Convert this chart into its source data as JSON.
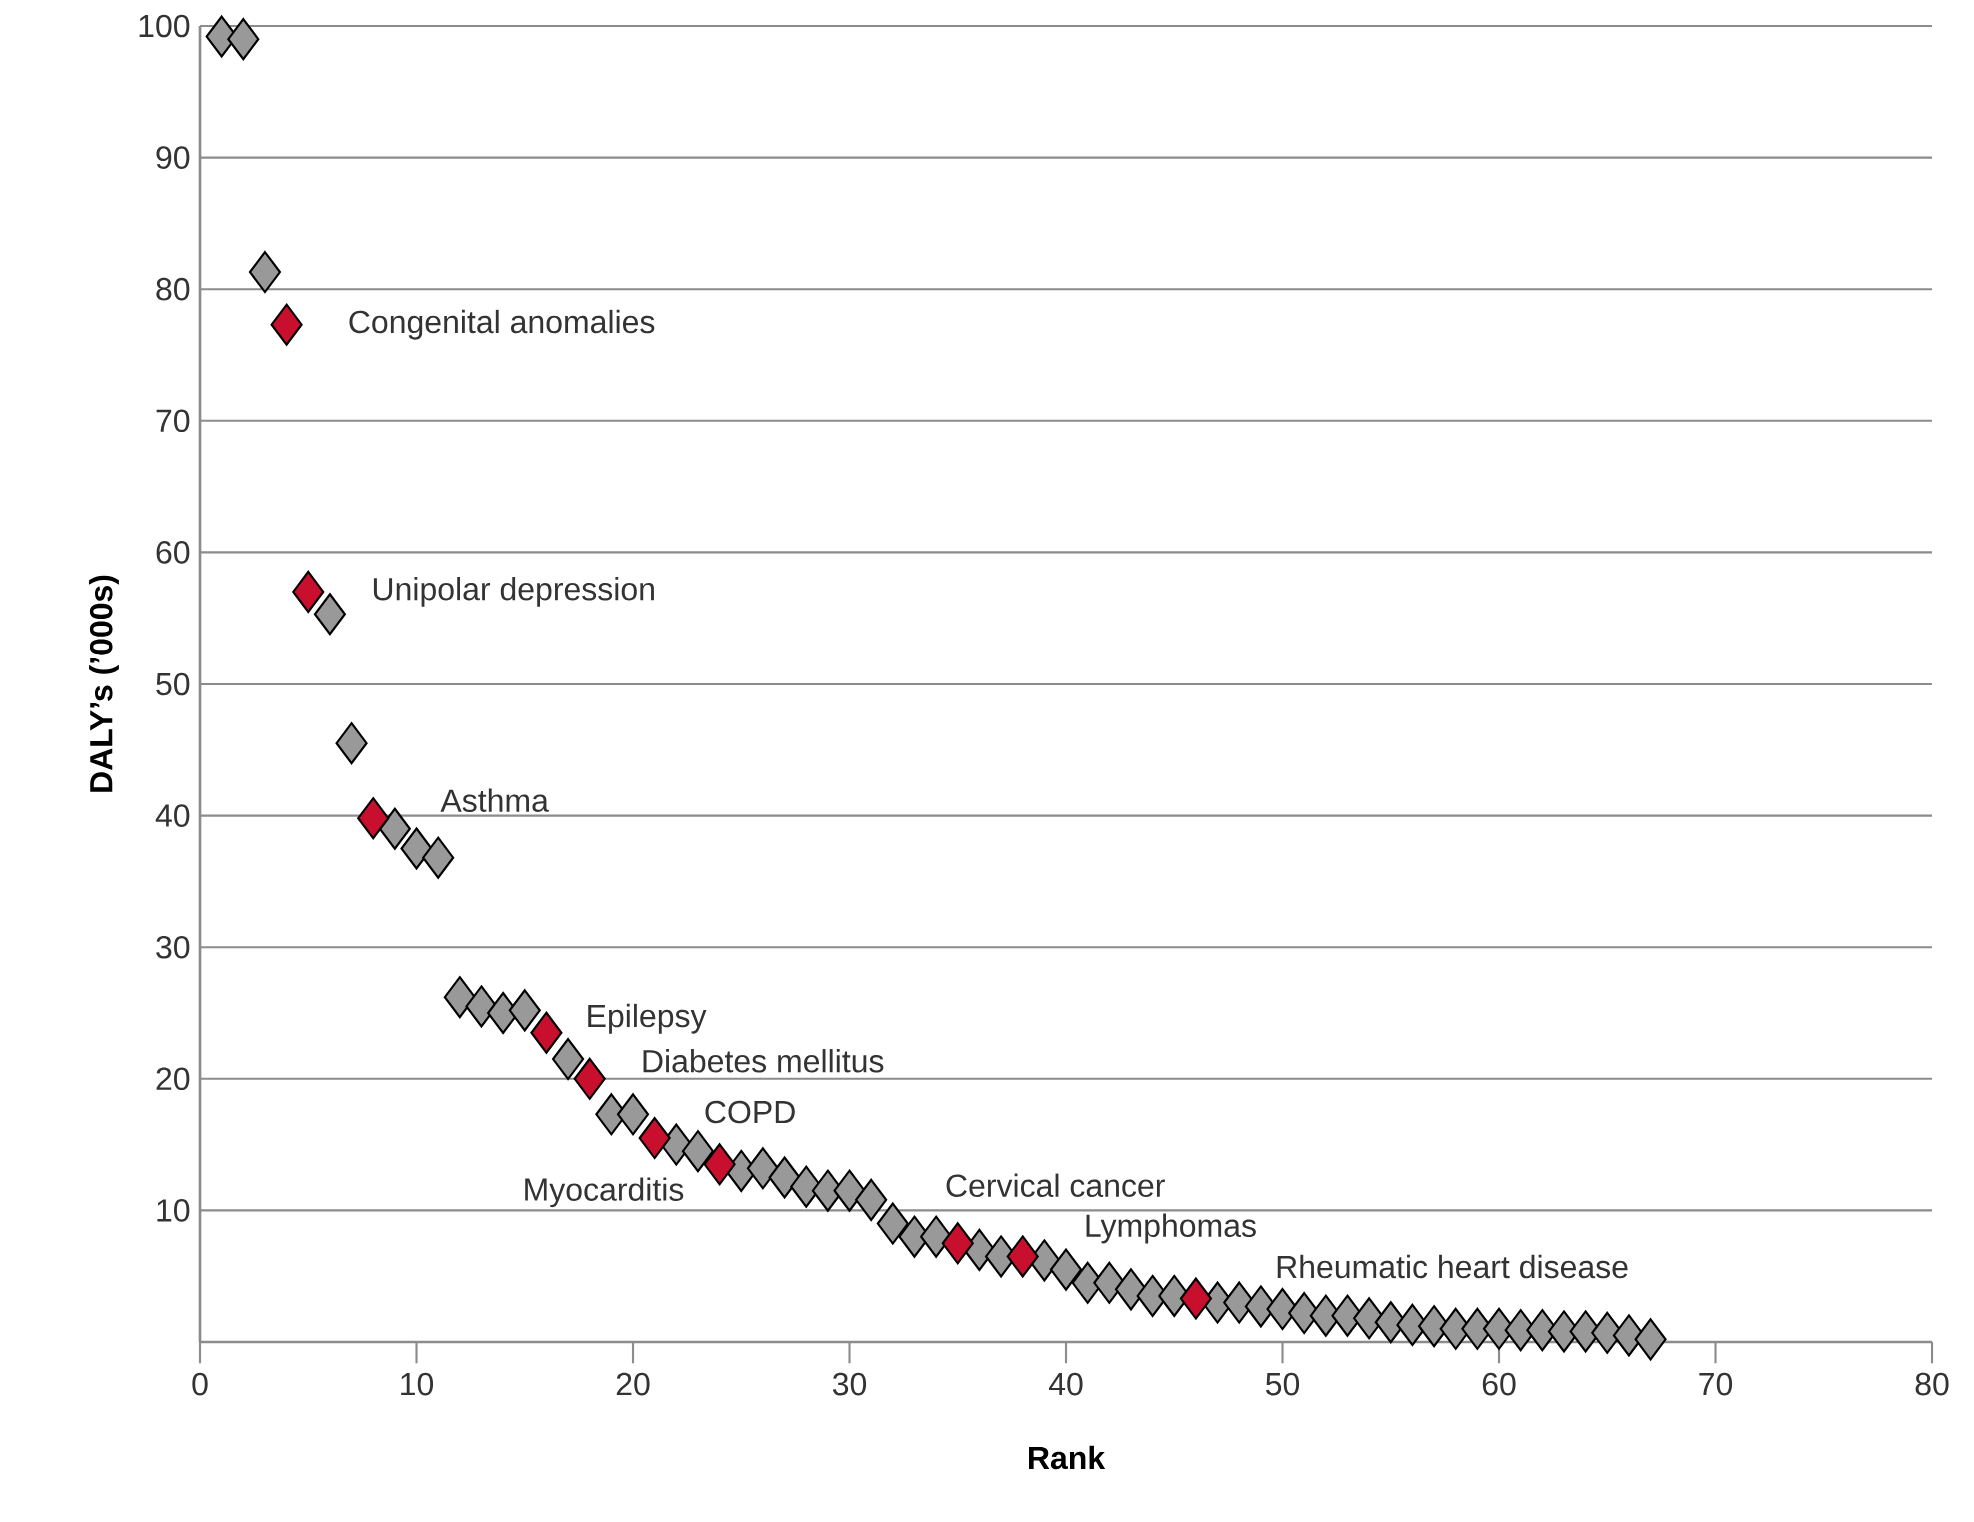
{
  "chart_data": {
    "type": "scatter",
    "xlabel": "Rank",
    "ylabel": "DALY’s (’000s)",
    "xlim": [
      0,
      80
    ],
    "xticks": [
      0,
      10,
      20,
      30,
      40,
      50,
      60,
      70,
      80
    ],
    "ylim": [
      0,
      100
    ],
    "yticks": [
      {
        "value": 0,
        "label": null
      },
      10,
      20,
      30,
      40,
      50,
      60,
      70,
      80,
      90,
      100
    ],
    "grid": "y",
    "marker": "diamond",
    "series": [
      {
        "color": "#999999",
        "x": [
          1,
          2,
          3,
          6,
          7,
          9,
          10,
          11,
          12,
          13,
          14,
          15,
          17,
          19,
          20,
          22,
          23,
          25,
          26,
          27,
          28,
          29,
          30,
          31,
          32,
          33,
          34,
          36,
          37,
          39,
          40,
          41,
          42,
          43,
          44,
          45,
          47,
          48,
          49,
          50,
          51,
          52,
          53,
          54,
          55,
          56,
          57,
          58,
          59,
          60,
          61,
          62,
          63,
          64,
          65,
          66,
          67
        ],
        "values": [
          99.2,
          99,
          81.3,
          55.3,
          45.5,
          39,
          37.5,
          36.8,
          26.2,
          25.5,
          25,
          25.2,
          21.5,
          17.3,
          17.3,
          15,
          14.5,
          13,
          13.2,
          12.5,
          11.8,
          11.5,
          11.5,
          10.8,
          9,
          8,
          8,
          7,
          6.5,
          6.2,
          5.5,
          4.5,
          4.5,
          4,
          3.5,
          3.5,
          3,
          3,
          2.7,
          2.5,
          2.2,
          2,
          2,
          1.8,
          1.5,
          1.3,
          1.2,
          1,
          1,
          1,
          0.9,
          0.9,
          0.8,
          0.8,
          0.7,
          0.5,
          0.2
        ]
      },
      {
        "color": "#c8102e",
        "x": [
          4,
          5,
          8,
          16,
          18,
          21,
          24,
          35,
          38,
          46
        ],
        "values": [
          77.3,
          57,
          39.8,
          23.5,
          20,
          15.5,
          13.5,
          7.5,
          6.5,
          3.3
        ]
      }
    ],
    "annotations": [
      {
        "text": "Congenital anomalies",
        "x": 4,
        "y": 77.3
      },
      {
        "text": "Unipolar depression",
        "x": 5,
        "y": 57
      },
      {
        "text": "Asthma",
        "x": 8,
        "y": 39.8
      },
      {
        "text": "Epilepsy",
        "x": 16,
        "y": 23.5
      },
      {
        "text": "Diabetes mellitus",
        "x": 18,
        "y": 20
      },
      {
        "text": "COPD",
        "x": 21,
        "y": 15.5
      },
      {
        "text": "Myocarditis",
        "x": 24,
        "y": 13.5
      },
      {
        "text": "Cervical cancer",
        "x": 35,
        "y": 7.5
      },
      {
        "text": "Lymphomas",
        "x": 38,
        "y": 6.5
      },
      {
        "text": "Rheumatic heart disease",
        "x": 46,
        "y": 3.3
      }
    ]
  }
}
